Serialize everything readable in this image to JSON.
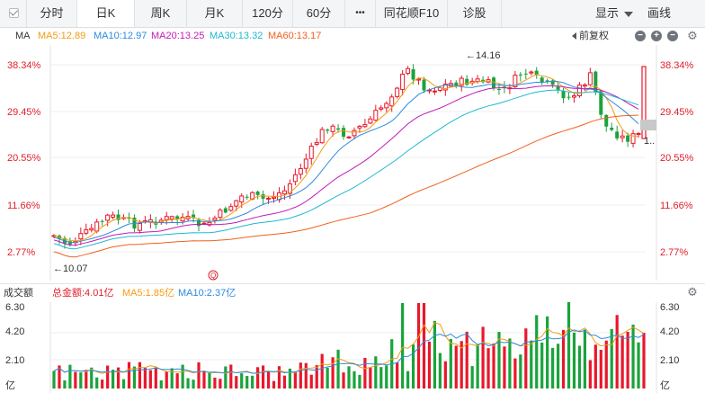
{
  "toolbar": {
    "tabs": [
      "分时",
      "日K",
      "周K",
      "月K",
      "120分",
      "60分",
      "•••",
      "同花顺F10",
      "诊股"
    ],
    "active_tab": "日K",
    "display_label": "显示",
    "draw_label": "画线"
  },
  "ma_legend": {
    "title": "MA",
    "items": [
      {
        "label": "MA5:12.89",
        "color": "#f39c12"
      },
      {
        "label": "MA10:12.97",
        "color": "#2a8be0"
      },
      {
        "label": "MA20:13.25",
        "color": "#c21bb5"
      },
      {
        "label": "MA30:13.32",
        "color": "#22b8cf"
      },
      {
        "label": "MA60:13.17",
        "color": "#f0611c"
      }
    ],
    "adjust_label": "前复权"
  },
  "price_axis": {
    "labels": [
      "38.34%",
      "29.45%",
      "20.55%",
      "11.66%",
      "2.77%"
    ],
    "color": "#e01e2a"
  },
  "annotations": {
    "high": "←14.16",
    "low": "←10.07",
    "current": "1..",
    "event_marker": "Q"
  },
  "volume_legend": {
    "title": "成交额",
    "items": [
      {
        "label": "总金额:4.01亿",
        "color": "#e01e2a"
      },
      {
        "label": "MA5:1.85亿",
        "color": "#f39c12"
      },
      {
        "label": "MA10:2.37亿",
        "color": "#2a8be0"
      }
    ],
    "axis_labels": [
      "6.30",
      "4.20",
      "2.10",
      "亿"
    ]
  },
  "colors": {
    "up": "#e8182c",
    "down": "#1aa33b",
    "grid": "#eeeeee"
  }
}
